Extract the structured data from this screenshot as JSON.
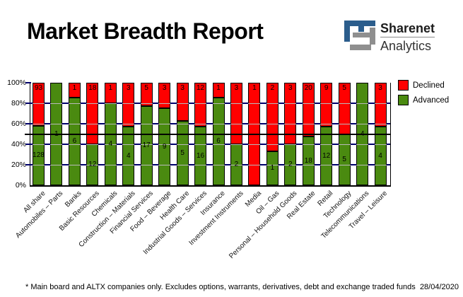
{
  "header": {
    "title": "Market Breadth Report",
    "logo": {
      "name": "Sharenet",
      "sub": "Analytics"
    }
  },
  "colors": {
    "declined": "#ff0000",
    "advanced": "#4a8a10",
    "logo_blue": "#2b5d8c",
    "logo_gray": "#8f8f8f",
    "grid_navy": "#00006b",
    "grid_gray_inner": "#b9b9b9",
    "fifty_line": "#000000"
  },
  "chart_data": {
    "type": "bar",
    "stacked": true,
    "normalized_to_percent": true,
    "title": "Market Breadth Report",
    "ylim": [
      0,
      100
    ],
    "ytick_labels": [
      "0%",
      "20%",
      "40%",
      "60%",
      "80%",
      "100%"
    ],
    "grid": {
      "major_percent": [
        20,
        40,
        60,
        80
      ],
      "fifty_percent_line": true
    },
    "legend_position": "top-right",
    "categories": [
      "All share",
      "Automobiles – Parts",
      "Banks",
      "Basic Resources",
      "Chemicals",
      "Construction – Materials",
      "Financial Services",
      "Food – Beverage",
      "Health Care",
      "Industrial Goods – Services",
      "Insurance",
      "Investment Instruments",
      "Media",
      "Oil – Gas",
      "Personal – Household Goods",
      "Real Estate",
      "Retail",
      "Technology",
      "Telecommunications",
      "Travel – Leisure"
    ],
    "series": [
      {
        "name": "Advanced",
        "color": "#4a8a10",
        "values": [
          128,
          1,
          6,
          12,
          4,
          4,
          17,
          9,
          5,
          16,
          6,
          2,
          0,
          1,
          2,
          18,
          12,
          5,
          4,
          4
        ]
      },
      {
        "name": "Declined",
        "color": "#ff0000",
        "values": [
          93,
          0,
          1,
          18,
          1,
          3,
          5,
          3,
          3,
          12,
          1,
          3,
          1,
          2,
          3,
          20,
          9,
          5,
          0,
          3
        ]
      }
    ]
  },
  "footer": {
    "note": "* Main board and ALTX companies only. Excludes options, warrants, derivatives, debt and exchange traded funds",
    "date": "28/04/2020"
  }
}
